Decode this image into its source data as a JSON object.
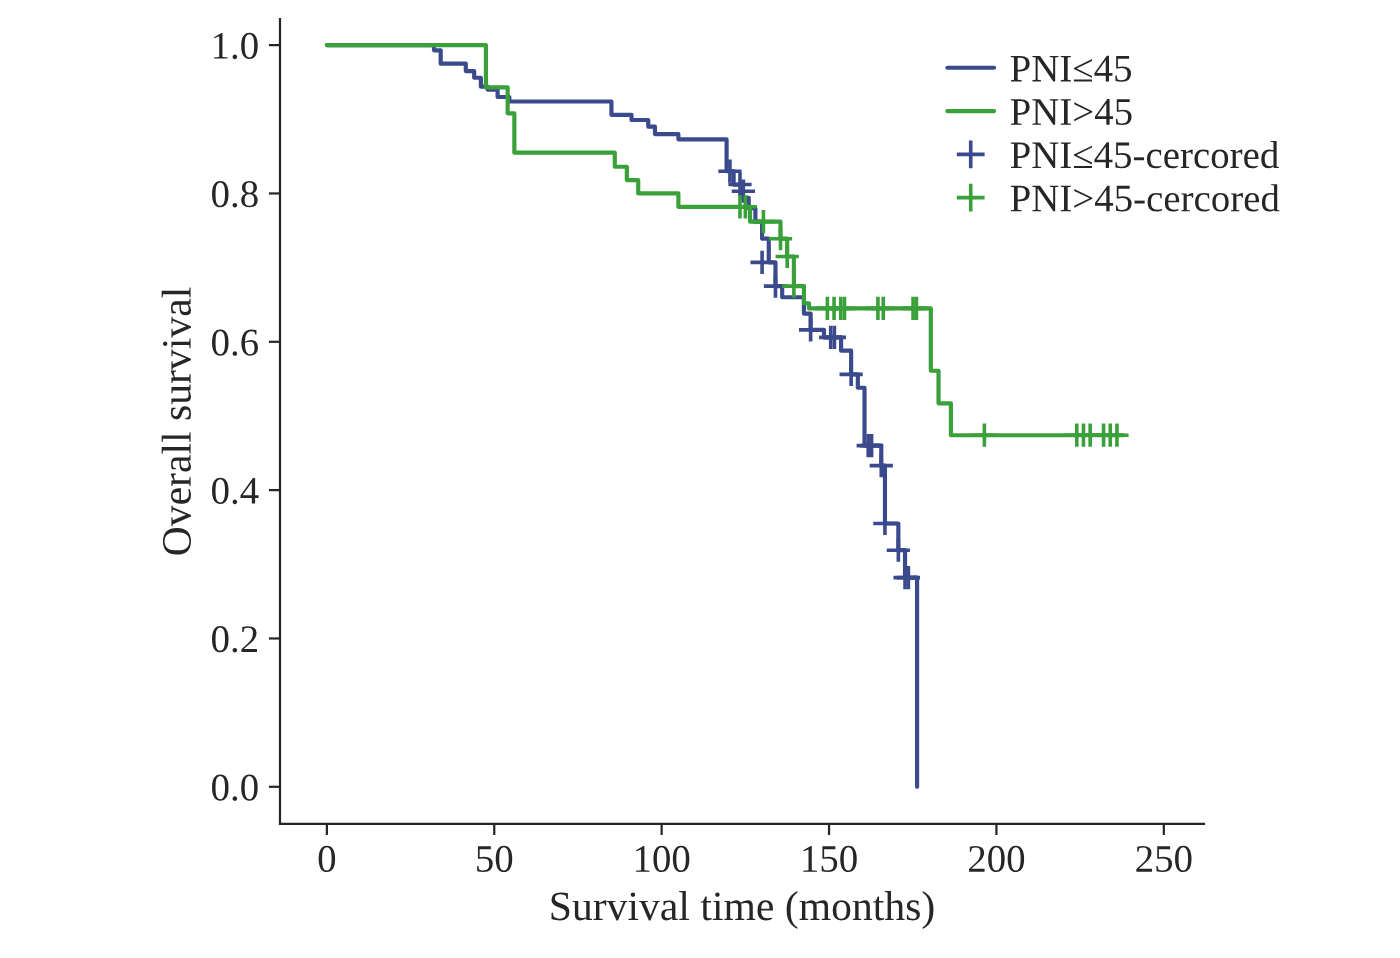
{
  "chart_data": {
    "type": "step",
    "xlabel": "Survival time (months)",
    "ylabel": "Overall survival",
    "xlim": [
      -14,
      262
    ],
    "xticks": [
      0,
      50,
      100,
      150,
      200,
      250
    ],
    "ylim": [
      -0.05,
      1.035
    ],
    "yticks": [
      {
        "value": 0,
        "label": "0.0"
      },
      {
        "value": 0.2,
        "label": "0.2"
      },
      {
        "value": 0.4,
        "label": "0.4"
      },
      {
        "value": 0.6,
        "label": "0.6"
      },
      {
        "value": 0.8,
        "label": "0.8"
      },
      {
        "value": 1,
        "label": "1.0"
      }
    ],
    "grid": false,
    "legend": "top right",
    "series": [
      {
        "name": "PNI≤45",
        "color": "#3a4a8c",
        "x": [
          0,
          32,
          34,
          41.5,
          44,
          46,
          48,
          51,
          54.5,
          85,
          91,
          96,
          98,
          105,
          119.4,
          121.5,
          124,
          126,
          128,
          130,
          132,
          134,
          136,
          142.5,
          144.5,
          148.5,
          153.6,
          156.6,
          158.6,
          160.6,
          165.6,
          166.7,
          170.7,
          172.7,
          176.3
        ],
        "values": [
          1.0,
          0.993,
          0.975,
          0.965,
          0.956,
          0.944,
          0.94,
          0.93,
          0.924,
          0.906,
          0.899,
          0.89,
          0.88,
          0.873,
          0.83,
          0.812,
          0.794,
          0.78,
          0.762,
          0.739,
          0.707,
          0.675,
          0.66,
          0.638,
          0.616,
          0.606,
          0.588,
          0.556,
          0.538,
          0.46,
          0.433,
          0.355,
          0.319,
          0.282,
          0.0
        ]
      },
      {
        "name": "PNI>45",
        "color": "#3aa03a",
        "x": [
          0,
          47.5,
          54,
          56,
          86,
          89.6,
          93,
          105,
          126.4,
          135.5,
          137.5,
          139.5,
          142.5,
          144,
          180.4,
          182.7,
          186.4,
          238
        ],
        "values": [
          1.0,
          0.943,
          0.908,
          0.855,
          0.836,
          0.818,
          0.8,
          0.782,
          0.762,
          0.739,
          0.715,
          0.675,
          0.652,
          0.645,
          0.561,
          0.517,
          0.474,
          0.474
        ]
      },
      {
        "name": "PNI≤45-cercored",
        "color": "#3a4a8c",
        "type": "scatter",
        "marker": "cross",
        "x": [
          120.4,
          123.4,
          124.4,
          130,
          134,
          144.5,
          150.5,
          151.6,
          156.6,
          161.7,
          162.7,
          165.6,
          166.7,
          170.7,
          172.7,
          173.7
        ],
        "values": [
          0.83,
          0.812,
          0.803,
          0.707,
          0.675,
          0.616,
          0.606,
          0.606,
          0.556,
          0.46,
          0.46,
          0.433,
          0.355,
          0.319,
          0.282,
          0.282
        ]
      },
      {
        "name": "PNI>45-cercored",
        "color": "#3aa03a",
        "type": "scatter",
        "marker": "cross",
        "x": [
          123.4,
          125,
          130.4,
          135.5,
          137.5,
          139.5,
          149.5,
          151.5,
          153.5,
          154.6,
          164.6,
          166.2,
          175.1,
          176.1,
          196.4,
          224,
          226,
          228,
          232,
          234,
          236
        ],
        "values": [
          0.782,
          0.782,
          0.762,
          0.739,
          0.715,
          0.675,
          0.645,
          0.645,
          0.645,
          0.645,
          0.645,
          0.645,
          0.645,
          0.645,
          0.474,
          0.474,
          0.474,
          0.474,
          0.474,
          0.474,
          0.474
        ]
      }
    ]
  }
}
